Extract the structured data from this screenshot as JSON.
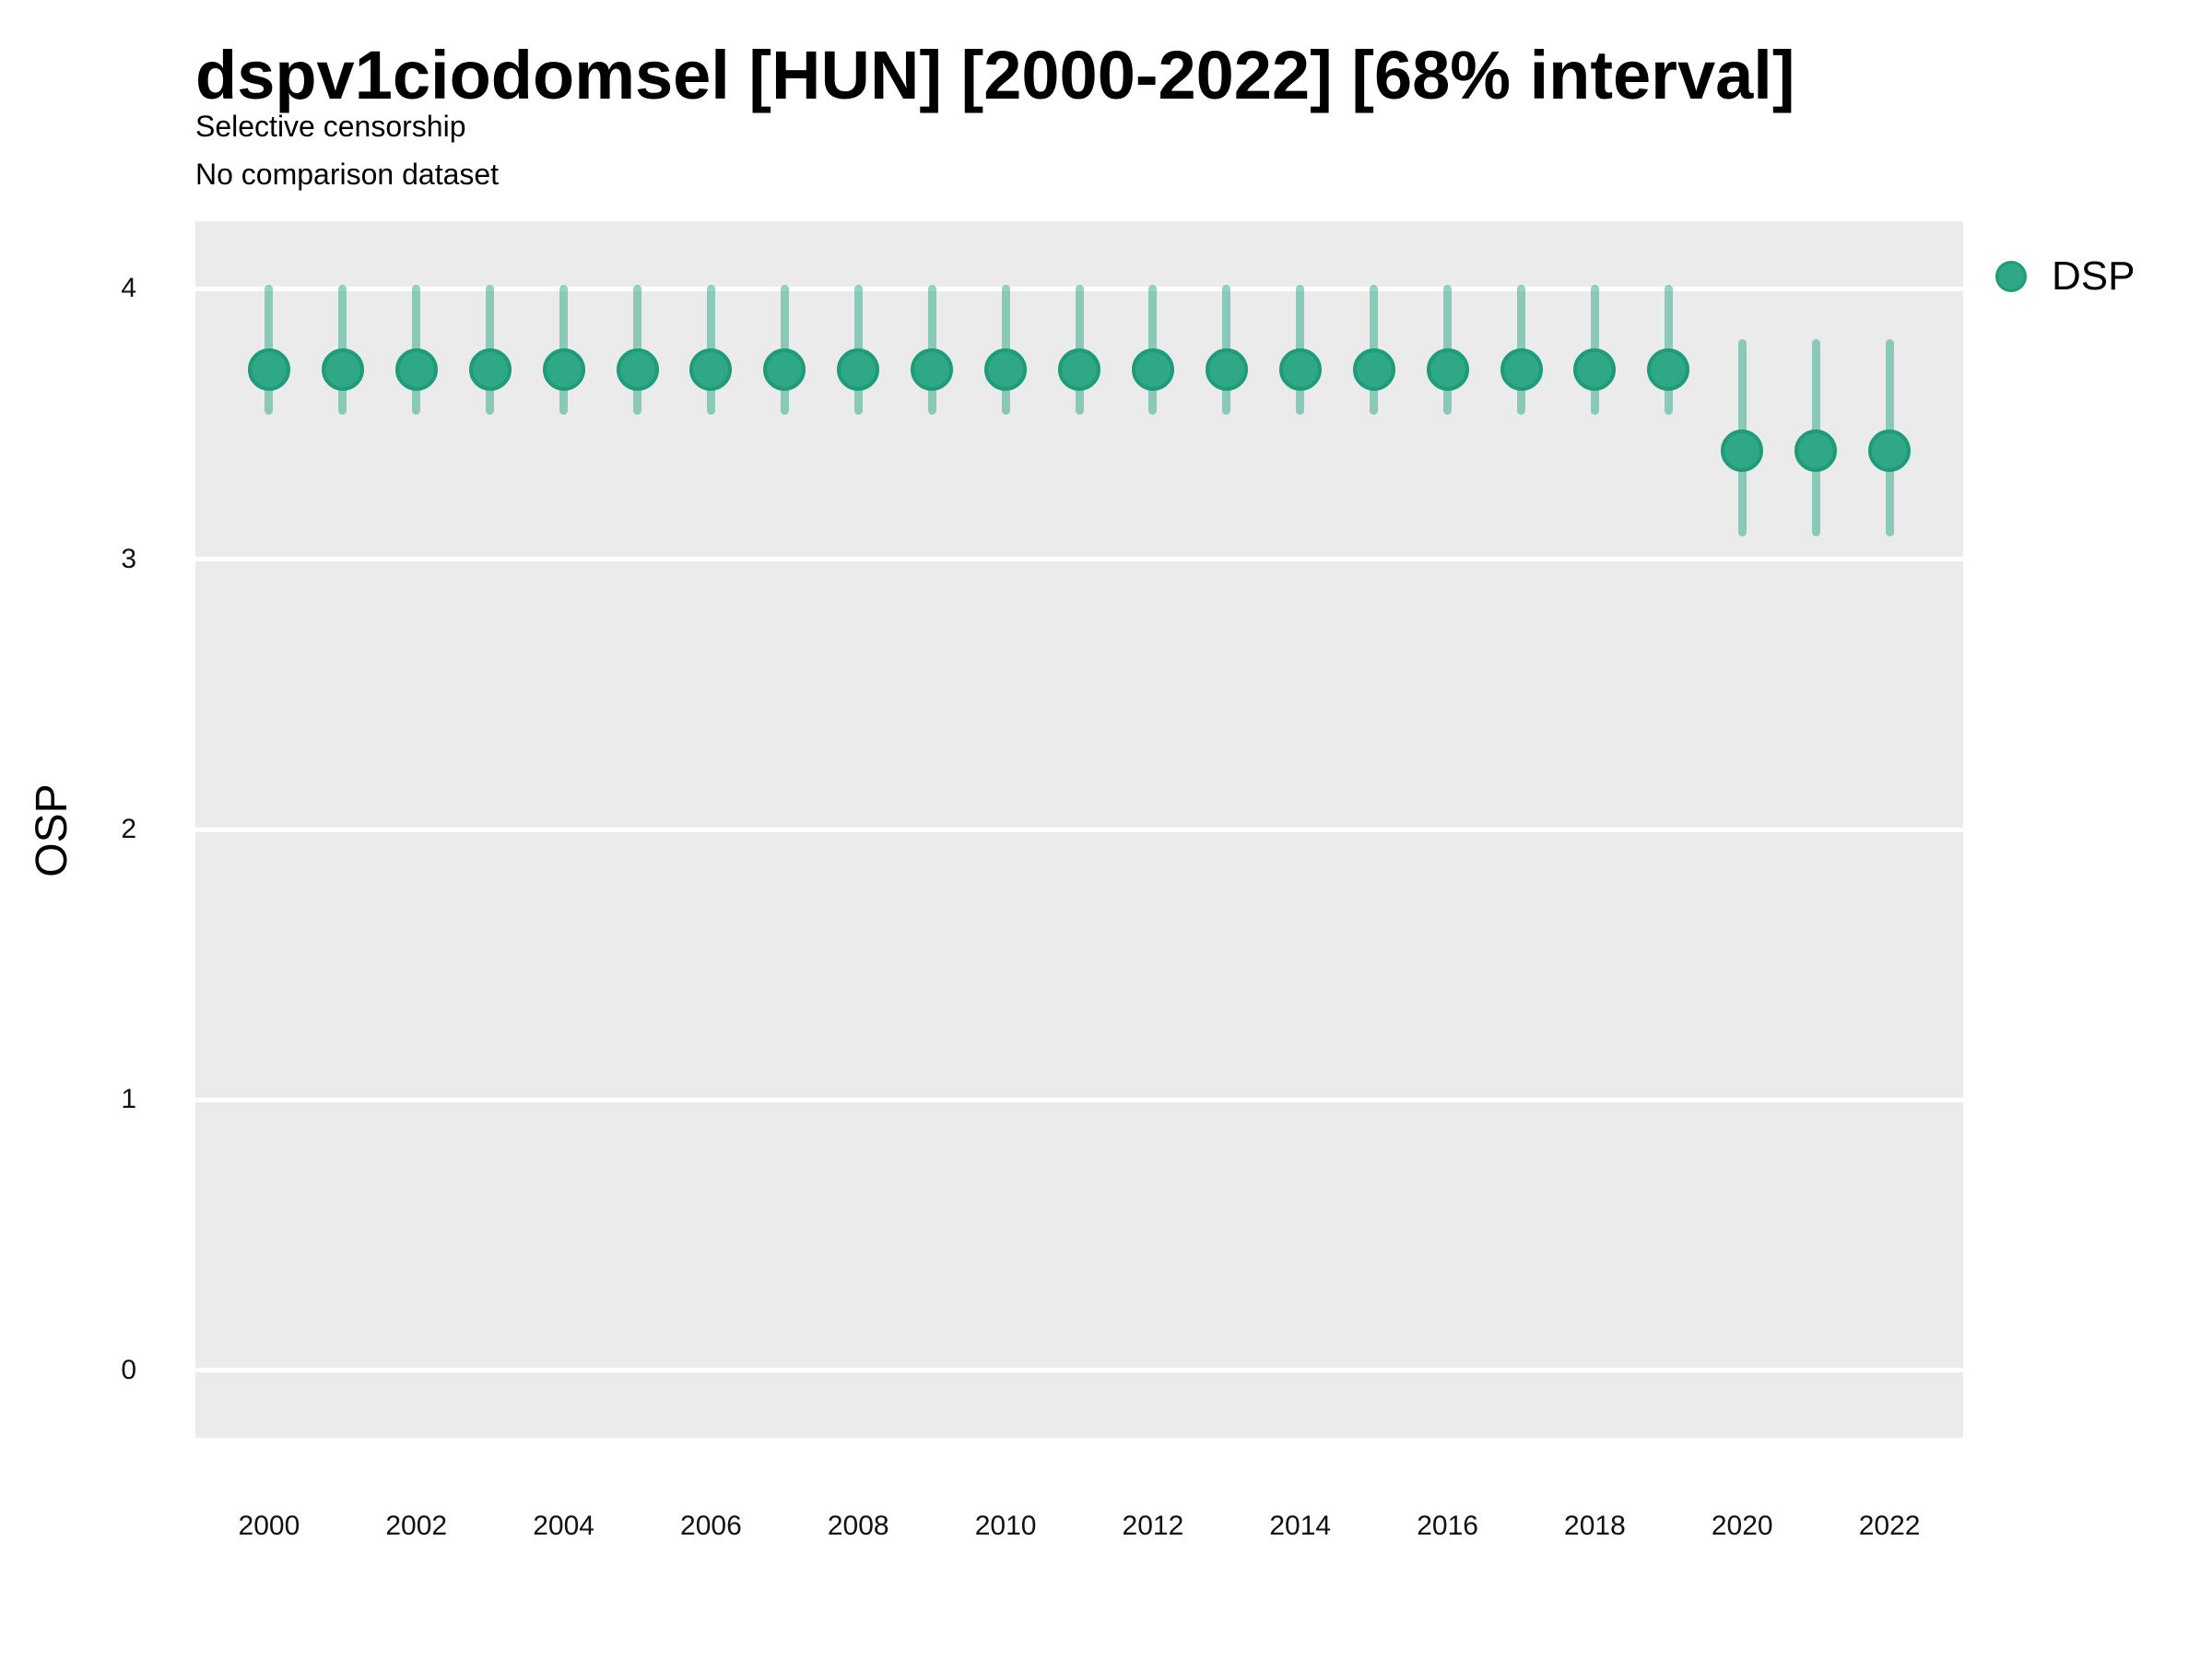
{
  "header": {
    "title": "dspv1ciodomsel [HUN] [2000-2022] [68% interval]",
    "subtitle1": "Selective censorship",
    "subtitle2": "No comparison dataset"
  },
  "axes": {
    "y_label": "OSP",
    "y_tick_values": [
      4,
      3,
      2,
      1,
      0
    ],
    "x_tick_values": [
      2000,
      2002,
      2004,
      2006,
      2008,
      2010,
      2012,
      2014,
      2016,
      2018,
      2020,
      2022
    ]
  },
  "legend": {
    "items": [
      {
        "label": "DSP",
        "color": "#2ea886",
        "stroke": "#1d9c77"
      }
    ]
  },
  "colors": {
    "panel_bg": "#ebebeb",
    "gridline": "#ffffff",
    "point_fill": "#2ea886",
    "point_stroke": "#1d9c77",
    "interval_bar": "rgba(42, 166, 132, 0.5)",
    "text": "#111111"
  },
  "chart_data": {
    "type": "scatter",
    "subtype": "pointrange",
    "title": "dspv1ciodomsel [HUN] [2000-2022] [68% interval]",
    "subtitle": "Selective censorship",
    "annotation": "No comparison dataset",
    "xlabel": "",
    "ylabel": "OSP",
    "xlim": [
      1999,
      2023
    ],
    "ylim": [
      -0.25,
      4.25
    ],
    "y_major_gridlines": [
      0,
      1,
      2,
      3,
      4
    ],
    "grid": "horizontal-major-only",
    "legend_position": "top-right",
    "interval_level": "68%",
    "series": [
      {
        "name": "DSP",
        "points": [
          {
            "year": 2000,
            "value": 3.7,
            "lo": 3.55,
            "hi": 4.0
          },
          {
            "year": 2001,
            "value": 3.7,
            "lo": 3.55,
            "hi": 4.0
          },
          {
            "year": 2002,
            "value": 3.7,
            "lo": 3.55,
            "hi": 4.0
          },
          {
            "year": 2003,
            "value": 3.7,
            "lo": 3.55,
            "hi": 4.0
          },
          {
            "year": 2004,
            "value": 3.7,
            "lo": 3.55,
            "hi": 4.0
          },
          {
            "year": 2005,
            "value": 3.7,
            "lo": 3.55,
            "hi": 4.0
          },
          {
            "year": 2006,
            "value": 3.7,
            "lo": 3.55,
            "hi": 4.0
          },
          {
            "year": 2007,
            "value": 3.7,
            "lo": 3.55,
            "hi": 4.0
          },
          {
            "year": 2008,
            "value": 3.7,
            "lo": 3.55,
            "hi": 4.0
          },
          {
            "year": 2009,
            "value": 3.7,
            "lo": 3.55,
            "hi": 4.0
          },
          {
            "year": 2010,
            "value": 3.7,
            "lo": 3.55,
            "hi": 4.0
          },
          {
            "year": 2011,
            "value": 3.7,
            "lo": 3.55,
            "hi": 4.0
          },
          {
            "year": 2012,
            "value": 3.7,
            "lo": 3.55,
            "hi": 4.0
          },
          {
            "year": 2013,
            "value": 3.7,
            "lo": 3.55,
            "hi": 4.0
          },
          {
            "year": 2014,
            "value": 3.7,
            "lo": 3.55,
            "hi": 4.0
          },
          {
            "year": 2015,
            "value": 3.7,
            "lo": 3.55,
            "hi": 4.0
          },
          {
            "year": 2016,
            "value": 3.7,
            "lo": 3.55,
            "hi": 4.0
          },
          {
            "year": 2017,
            "value": 3.7,
            "lo": 3.55,
            "hi": 4.0
          },
          {
            "year": 2018,
            "value": 3.7,
            "lo": 3.55,
            "hi": 4.0
          },
          {
            "year": 2019,
            "value": 3.7,
            "lo": 3.55,
            "hi": 4.0
          },
          {
            "year": 2020,
            "value": 3.4,
            "lo": 3.1,
            "hi": 3.8
          },
          {
            "year": 2021,
            "value": 3.4,
            "lo": 3.1,
            "hi": 3.8
          },
          {
            "year": 2022,
            "value": 3.4,
            "lo": 3.1,
            "hi": 3.8
          }
        ]
      }
    ]
  }
}
